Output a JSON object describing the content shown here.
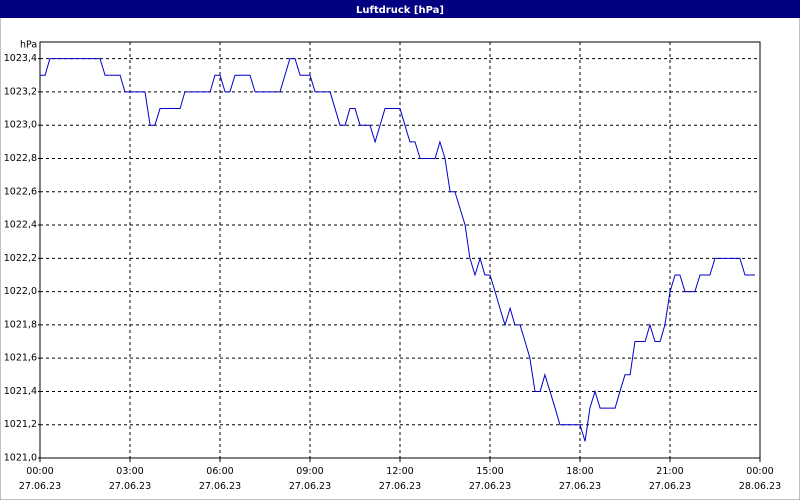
{
  "chart_data": {
    "type": "line",
    "title": "Luftdruck [hPa]",
    "y_unit": "hPa",
    "color": "#0000cc",
    "grid": true,
    "xlim": [
      0,
      24
    ],
    "ylim": [
      1021.0,
      1023.5
    ],
    "xticks": [
      {
        "value": 0,
        "label": "00:00 27.06.23"
      },
      {
        "value": 3,
        "label": "03:00 27.06.23"
      },
      {
        "value": 6,
        "label": "06:00 27.06.23"
      },
      {
        "value": 9,
        "label": "09:00 27.06.23"
      },
      {
        "value": 12,
        "label": "12:00 27.06.23"
      },
      {
        "value": 15,
        "label": "15:00 27.06.23"
      },
      {
        "value": 18,
        "label": "18:00 27.06.23"
      },
      {
        "value": 21,
        "label": "21:00 27.06.23"
      },
      {
        "value": 24,
        "label": "00:00 28.06.23"
      }
    ],
    "yticks": [
      {
        "value": 1021.0,
        "label": "1021,0"
      },
      {
        "value": 1021.2,
        "label": "1021,2"
      },
      {
        "value": 1021.4,
        "label": "1021,4"
      },
      {
        "value": 1021.6,
        "label": "1021,6"
      },
      {
        "value": 1021.8,
        "label": "1021,8"
      },
      {
        "value": 1022.0,
        "label": "1022,0"
      },
      {
        "value": 1022.2,
        "label": "1022,2"
      },
      {
        "value": 1022.4,
        "label": "1022,4"
      },
      {
        "value": 1022.6,
        "label": "1022,6"
      },
      {
        "value": 1022.8,
        "label": "1022,8"
      },
      {
        "value": 1023.0,
        "label": "1023,0"
      },
      {
        "value": 1023.2,
        "label": "1023,2"
      },
      {
        "value": 1023.4,
        "label": "1023,4"
      }
    ],
    "x": [
      0,
      0.17,
      0.33,
      2,
      2.17,
      2.67,
      2.83,
      3.5,
      3.67,
      3.83,
      4,
      4.67,
      4.83,
      5.67,
      5.83,
      6,
      6.17,
      6.33,
      6.5,
      7,
      7.17,
      8,
      8.33,
      8.5,
      8.67,
      9,
      9.17,
      9.67,
      10,
      10.17,
      10.33,
      10.5,
      10.67,
      11,
      11.17,
      11.5,
      12,
      12.33,
      12.5,
      12.67,
      13.17,
      13.33,
      13.5,
      13.67,
      13.83,
      14,
      14.17,
      14.33,
      14.5,
      14.67,
      14.83,
      15,
      15.17,
      15.33,
      15.5,
      15.67,
      15.83,
      16,
      16.17,
      16.33,
      16.5,
      16.67,
      16.83,
      17,
      17.17,
      17.33,
      18,
      18.17,
      18.33,
      18.5,
      18.67,
      19.17,
      19.33,
      19.5,
      19.67,
      19.83,
      20.17,
      20.33,
      20.5,
      20.67,
      20.83,
      21,
      21.17,
      21.33,
      21.5,
      21.83,
      22,
      22.33,
      22.5,
      23.33,
      23.5,
      23.83
    ],
    "values": [
      1023.3,
      1023.3,
      1023.4,
      1023.4,
      1023.3,
      1023.3,
      1023.2,
      1023.2,
      1023.0,
      1023.0,
      1023.1,
      1023.1,
      1023.2,
      1023.2,
      1023.3,
      1023.3,
      1023.2,
      1023.2,
      1023.3,
      1023.3,
      1023.2,
      1023.2,
      1023.4,
      1023.4,
      1023.3,
      1023.3,
      1023.2,
      1023.2,
      1023.0,
      1023.0,
      1023.1,
      1023.1,
      1023.0,
      1023.0,
      1022.9,
      1023.1,
      1023.1,
      1022.9,
      1022.9,
      1022.8,
      1022.8,
      1022.9,
      1022.8,
      1022.6,
      1022.6,
      1022.5,
      1022.4,
      1022.2,
      1022.1,
      1022.2,
      1022.1,
      1022.1,
      1022.0,
      1021.9,
      1021.8,
      1021.9,
      1021.8,
      1021.8,
      1021.7,
      1021.6,
      1021.4,
      1021.4,
      1021.5,
      1021.4,
      1021.3,
      1021.2,
      1021.2,
      1021.1,
      1021.3,
      1021.4,
      1021.3,
      1021.3,
      1021.4,
      1021.5,
      1021.5,
      1021.7,
      1021.7,
      1021.8,
      1021.7,
      1021.7,
      1021.8,
      1022.0,
      1022.1,
      1022.1,
      1022.0,
      1022.0,
      1022.1,
      1022.1,
      1022.2,
      1022.2,
      1022.1,
      1022.1
    ]
  }
}
